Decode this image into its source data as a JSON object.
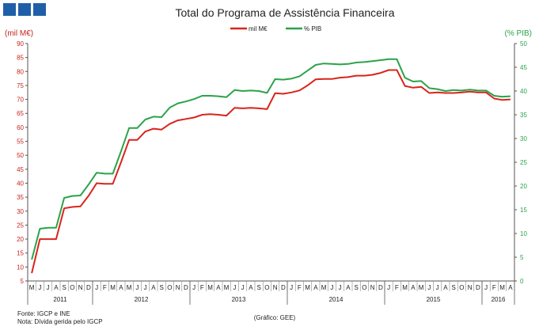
{
  "chart_data": {
    "type": "line",
    "title": "Total do Programa de Assistência Financeira",
    "y_left_label": "(mil M€)",
    "y_right_label": "(% PIB)",
    "y_left_range": [
      5,
      90
    ],
    "y_right_range": [
      0,
      50
    ],
    "y_left_ticks": [
      "5",
      "10",
      "15",
      "20",
      "25",
      "30",
      "35",
      "40",
      "45",
      "50",
      "55",
      "60",
      "65",
      "70",
      "75",
      "80",
      "85",
      "90"
    ],
    "y_right_ticks": [
      "0",
      "5",
      "10",
      "15",
      "20",
      "25",
      "30",
      "35",
      "40",
      "45",
      "50"
    ],
    "months": [
      "M",
      "J",
      "J",
      "A",
      "S",
      "O",
      "N",
      "D",
      "J",
      "F",
      "M",
      "A",
      "M",
      "J",
      "J",
      "A",
      "S",
      "O",
      "N",
      "D",
      "J",
      "F",
      "M",
      "A",
      "M",
      "J",
      "J",
      "A",
      "S",
      "O",
      "N",
      "D",
      "J",
      "F",
      "M",
      "A",
      "M",
      "J",
      "J",
      "A",
      "S",
      "O",
      "N",
      "D",
      "J",
      "F",
      "M",
      "A",
      "M",
      "J",
      "J",
      "A",
      "S",
      "O",
      "N",
      "D",
      "J",
      "F",
      "M",
      "A"
    ],
    "years": [
      {
        "label": "2011",
        "start": 0,
        "end": 8
      },
      {
        "label": "2012",
        "start": 8,
        "end": 20
      },
      {
        "label": "2013",
        "start": 20,
        "end": 32
      },
      {
        "label": "2014",
        "start": 32,
        "end": 44
      },
      {
        "label": "2015",
        "start": 44,
        "end": 56
      },
      {
        "label": "2016",
        "start": 56,
        "end": 60
      }
    ],
    "legend_placement": "top-center",
    "grid": false,
    "series": [
      {
        "name": "mil M€",
        "axis": "left",
        "color": "#d9241c",
        "values": [
          7.8,
          20,
          20,
          20,
          31,
          31.5,
          31.7,
          35.5,
          40,
          39.8,
          39.8,
          47.5,
          55.5,
          55.5,
          58.5,
          59.5,
          59.2,
          61.2,
          62.5,
          63,
          63.5,
          64.5,
          64.7,
          64.5,
          64.2,
          67,
          66.8,
          67,
          66.8,
          66.5,
          72.2,
          72,
          72.5,
          73.2,
          75,
          77.2,
          77.3,
          77.3,
          77.8,
          78,
          78.5,
          78.5,
          78.8,
          79.5,
          80.5,
          80.5,
          74.8,
          74.2,
          74.5,
          72.3,
          72.5,
          72.3,
          72.3,
          72.5,
          72.8,
          72.5,
          72.5,
          70.3,
          69.8,
          70
        ]
      },
      {
        "name": "% PIB",
        "axis": "right",
        "color": "#2aa34a",
        "values": [
          4.5,
          11,
          11.2,
          11.2,
          17.5,
          17.9,
          18,
          20.3,
          22.8,
          22.6,
          22.6,
          27.3,
          32.2,
          32.2,
          34,
          34.6,
          34.5,
          36.5,
          37.4,
          37.8,
          38.3,
          39,
          39,
          38.9,
          38.7,
          40.2,
          40,
          40.1,
          40,
          39.6,
          42.5,
          42.4,
          42.6,
          43.1,
          44.3,
          45.5,
          45.8,
          45.7,
          45.6,
          45.7,
          46,
          46.1,
          46.3,
          46.5,
          46.7,
          46.7,
          42.8,
          42,
          42.1,
          40.6,
          40.4,
          40,
          40.2,
          40.1,
          40.3,
          40.1,
          40.1,
          39,
          38.8,
          38.9
        ]
      }
    ]
  },
  "footer": {
    "source": "Fonte: IGCP e INE",
    "note": "Nota: Dívida  gerida  pelo IGCP",
    "credit": "(Gráfico:  GEE)"
  },
  "colors": {
    "logo": "#1f5fa8",
    "left_axis": "#c8231b",
    "right_axis": "#2aa34a",
    "axis_line": "#555555"
  }
}
